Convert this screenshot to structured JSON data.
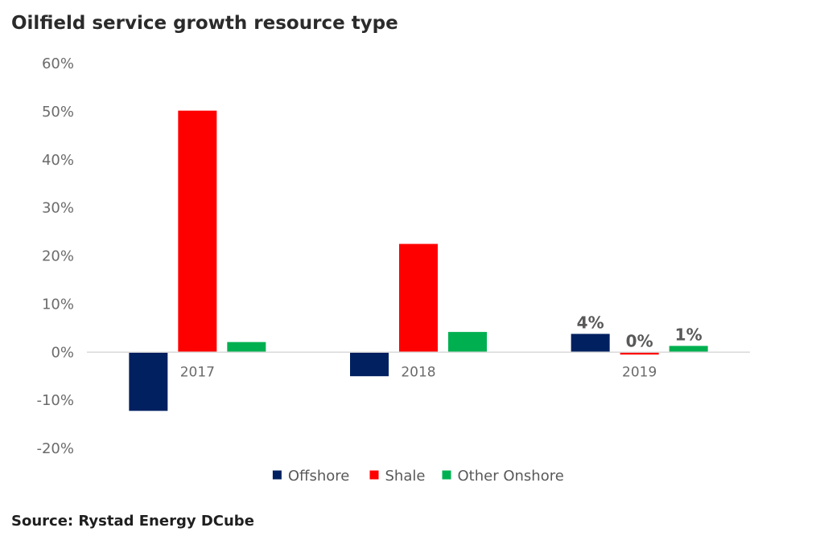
{
  "title": "Oilfield service growth resource type",
  "source": "Source: Rystad Energy DCube",
  "chart_data": {
    "type": "bar",
    "categories": [
      "2017",
      "2018",
      "2019"
    ],
    "series": [
      {
        "name": "Offshore",
        "color": "#002060",
        "values": [
          -12.2,
          -5.0,
          3.8
        ],
        "labels": [
          null,
          null,
          "4%"
        ]
      },
      {
        "name": "Shale",
        "color": "#ff0000",
        "values": [
          50.2,
          22.5,
          -0.4
        ],
        "labels": [
          null,
          null,
          "0%"
        ]
      },
      {
        "name": "Other Onshore",
        "color": "#00b050",
        "values": [
          2.1,
          4.2,
          1.3
        ],
        "labels": [
          null,
          null,
          "1%"
        ]
      }
    ],
    "yticks": [
      "60%",
      "50%",
      "40%",
      "30%",
      "20%",
      "10%",
      "0%",
      "-10%",
      "-20%"
    ],
    "ylim": [
      -20,
      60
    ],
    "legend_position": "bottom",
    "grid": false
  }
}
